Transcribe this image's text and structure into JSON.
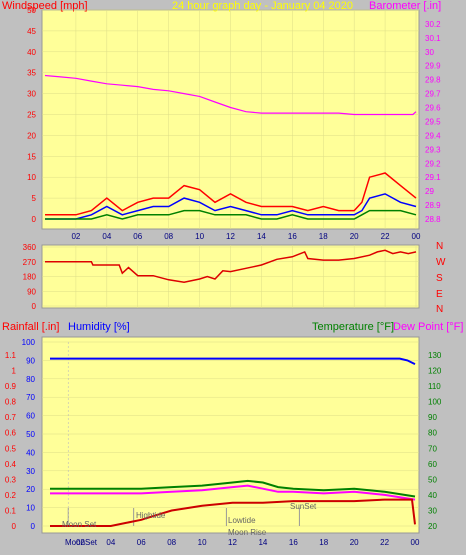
{
  "colors": {
    "panel_bg": "#ffff99",
    "frame": "#c0c0c0",
    "wind_axis": "#ff0000",
    "baro_axis": "#ff00ff",
    "title": "#ffff00",
    "humidity_axis": "#0000ff",
    "temp_axis": "#008000",
    "dew_axis": "#ff00ff"
  },
  "header": {
    "windspeed_label": "Windspeed [mph]",
    "title": "24 hour graph day - January 04 2020",
    "barometer_label": "Barometer [.in]"
  },
  "compass": [
    "N",
    "W",
    "S",
    "E",
    "N"
  ],
  "lower_header": {
    "rainfall_label": "Rainfall [.in]",
    "humidity_label": "Humidity [%]",
    "temperature_label": "Temperature [°F]",
    "dewpoint_label": "Dew Point [°F]"
  },
  "annotations": {
    "moonset": "Moon Set",
    "hightide": "Hightide",
    "lowtide": "Lowtide",
    "moonrise": "Moon Rise",
    "sunset": "SunSet",
    "moonset_x": "MoonSet"
  },
  "chart_data": [
    {
      "type": "line",
      "title": "24 hour graph day - January 04 2020",
      "xlabel": "",
      "x_ticks": [
        "02",
        "04",
        "06",
        "08",
        "10",
        "12",
        "14",
        "16",
        "18",
        "20",
        "22",
        "00"
      ],
      "y_left": {
        "label": "Windspeed [mph]",
        "ylim": [
          0,
          50
        ],
        "ticks": [
          0,
          5,
          10,
          15,
          20,
          25,
          30,
          35,
          40,
          45,
          50
        ]
      },
      "y_right": {
        "label": "Barometer [.in]",
        "ylim": [
          28.8,
          30.3
        ],
        "ticks": [
          "28.8",
          "28.9",
          "29",
          "29.1",
          "29.2",
          "29.3",
          "29.4",
          "29.5",
          "29.6",
          "29.7",
          "29.8",
          "29.9",
          "30",
          "30.1",
          "30.2"
        ]
      },
      "series": [
        {
          "name": "Barometer [.in]",
          "color": "#ff00ff",
          "axis": "right",
          "x": [
            0,
            1,
            2,
            3,
            4,
            5,
            6,
            7,
            8,
            9,
            10,
            11,
            12,
            13,
            14,
            15,
            16,
            17,
            18,
            19,
            20,
            21,
            22,
            23,
            23.8,
            24
          ],
          "values": [
            29.83,
            29.82,
            29.81,
            29.79,
            29.77,
            29.76,
            29.75,
            29.73,
            29.72,
            29.7,
            29.68,
            29.64,
            29.6,
            29.57,
            29.56,
            29.56,
            29.56,
            29.56,
            29.56,
            29.56,
            29.55,
            29.55,
            29.55,
            29.55,
            29.55,
            29.57
          ]
        },
        {
          "name": "Wind gust",
          "color": "#ff0000",
          "axis": "left",
          "x": [
            0,
            1,
            2,
            3,
            4,
            5,
            6,
            7,
            8,
            9,
            10,
            11,
            12,
            13,
            14,
            15,
            16,
            17,
            18,
            19,
            20,
            20.5,
            21,
            22,
            23,
            24
          ],
          "values": [
            1,
            1,
            1,
            2,
            5,
            2,
            4,
            5,
            5,
            8,
            7,
            4,
            6,
            4,
            3,
            3,
            3,
            2,
            3,
            2,
            2,
            4,
            10,
            11,
            8,
            5
          ]
        },
        {
          "name": "Wind average",
          "color": "#0000ff",
          "axis": "left",
          "x": [
            0,
            1,
            2,
            3,
            4,
            5,
            6,
            7,
            8,
            9,
            10,
            11,
            12,
            13,
            14,
            15,
            16,
            17,
            18,
            19,
            20,
            20.5,
            21,
            22,
            23,
            24
          ],
          "values": [
            0,
            0,
            0,
            1,
            3,
            1,
            2,
            3,
            3,
            5,
            4,
            2,
            3,
            2,
            1,
            1,
            2,
            1,
            1,
            1,
            1,
            2,
            5,
            6,
            4,
            3
          ]
        },
        {
          "name": "Wind min",
          "color": "#008000",
          "axis": "left",
          "x": [
            0,
            1,
            2,
            3,
            4,
            5,
            6,
            7,
            8,
            9,
            10,
            11,
            12,
            13,
            14,
            15,
            16,
            17,
            18,
            19,
            20,
            20.5,
            21,
            22,
            23,
            24
          ],
          "values": [
            0,
            0,
            0,
            0,
            1,
            0,
            1,
            1,
            1,
            2,
            2,
            1,
            1,
            1,
            0,
            0,
            1,
            0,
            0,
            0,
            0,
            1,
            2,
            2,
            2,
            1
          ]
        }
      ]
    },
    {
      "type": "line",
      "title": "",
      "x_ticks": [
        "02",
        "04",
        "06",
        "08",
        "10",
        "12",
        "14",
        "16",
        "18",
        "20",
        "22",
        "00"
      ],
      "y_left": {
        "label": "",
        "ylim": [
          0,
          360
        ],
        "ticks": [
          0,
          90,
          180,
          270,
          360
        ]
      },
      "y_right": {
        "labels": [
          "N",
          "W",
          "S",
          "E",
          "N"
        ]
      },
      "series": [
        {
          "name": "Wind direction",
          "color": "#dd0000",
          "axis": "left",
          "x": [
            0,
            3,
            3.1,
            4.8,
            5,
            5.4,
            6,
            6.5,
            7,
            8,
            9,
            10,
            10.5,
            11,
            11.5,
            12,
            13,
            13.5,
            14,
            15,
            16,
            16.8,
            17,
            18,
            19,
            20,
            21,
            21.5,
            22,
            22.5,
            23,
            23.5,
            24
          ],
          "values": [
            270,
            270,
            250,
            250,
            200,
            235,
            185,
            185,
            185,
            160,
            145,
            165,
            180,
            165,
            215,
            210,
            230,
            240,
            250,
            285,
            300,
            330,
            290,
            280,
            280,
            290,
            310,
            330,
            340,
            320,
            330,
            320,
            330
          ]
        }
      ]
    },
    {
      "type": "line",
      "title": "",
      "x_ticks": [
        "MoonSet",
        "02",
        "04",
        "06",
        "08",
        "10",
        "12",
        "14",
        "16",
        "18",
        "20",
        "22",
        "00"
      ],
      "y_left_outer": {
        "label": "Rainfall [.in]",
        "ylim": [
          0,
          1.0
        ],
        "ticks": [
          "0",
          "0.1",
          "0.2",
          "0.3",
          "0.4",
          "0.5",
          "0.6",
          "0.7",
          "0.8",
          "0.9",
          "1",
          "1.1"
        ]
      },
      "y_left_inner": {
        "label": "Humidity [%]",
        "ylim": [
          0,
          100
        ],
        "ticks": [
          0,
          10,
          20,
          30,
          40,
          50,
          60,
          70,
          80,
          90,
          100
        ]
      },
      "y_right": {
        "label": "Temperature [°F] / Dew Point [°F]",
        "ylim": [
          20,
          130
        ],
        "ticks": [
          20,
          30,
          40,
          50,
          60,
          70,
          80,
          90,
          100,
          110,
          120,
          130
        ]
      },
      "series": [
        {
          "name": "Humidity [%]",
          "color": "#0000ff",
          "axis": "humidity",
          "x": [
            0,
            2,
            4,
            6,
            8,
            10,
            12,
            14,
            16,
            18,
            20,
            22,
            23,
            23.5,
            24
          ],
          "values": [
            91,
            91,
            91,
            91,
            91,
            91,
            91,
            91,
            91,
            91,
            91,
            91,
            91,
            90,
            88
          ]
        },
        {
          "name": "Temperature [°F]",
          "color": "#008000",
          "axis": "temp",
          "x": [
            0,
            2,
            4,
            6,
            8,
            10,
            12,
            13,
            14,
            15,
            16,
            18,
            20,
            22,
            24
          ],
          "values": [
            44,
            44,
            44,
            44,
            45,
            46,
            48,
            49,
            48,
            45,
            44,
            43,
            44,
            42,
            39
          ]
        },
        {
          "name": "Dew Point [°F]",
          "color": "#ff00ff",
          "axis": "temp",
          "x": [
            0,
            2,
            4,
            6,
            8,
            10,
            12,
            13,
            14,
            15,
            16,
            18,
            20,
            22,
            24
          ],
          "values": [
            41,
            41,
            41,
            41,
            42,
            43,
            45,
            46,
            44,
            42,
            42,
            41,
            42,
            40,
            37
          ]
        },
        {
          "name": "Rainfall [.in]",
          "color": "#cc0000",
          "axis": "rain",
          "x": [
            0,
            4,
            5,
            6,
            7,
            8,
            10,
            12,
            14,
            16,
            18,
            20,
            22,
            23.8,
            24
          ],
          "values": [
            0,
            0,
            0.02,
            0.04,
            0.07,
            0.1,
            0.13,
            0.15,
            0.15,
            0.16,
            0.16,
            0.16,
            0.17,
            0.17,
            0.01
          ]
        }
      ]
    }
  ]
}
